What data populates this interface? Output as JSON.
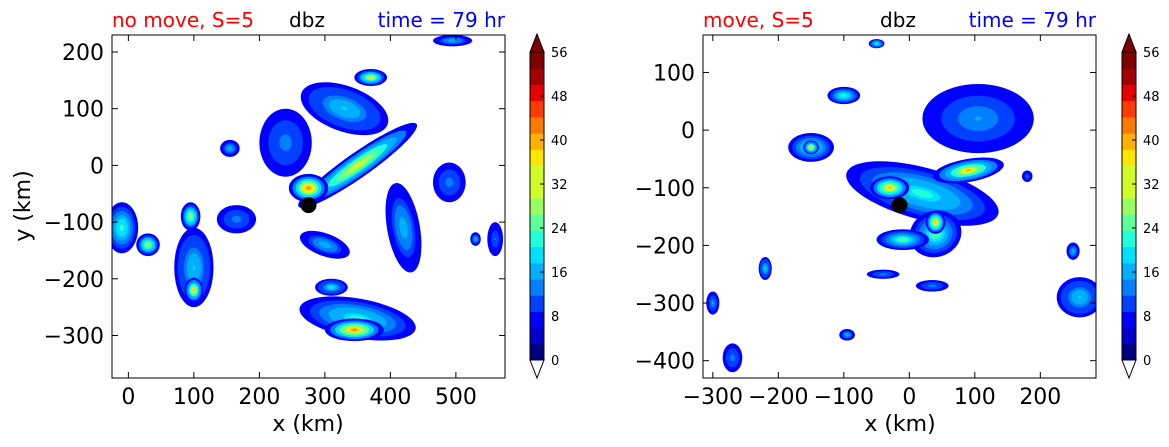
{
  "colors": {
    "title_left": "#ff0000",
    "title_center": "#000000",
    "title_right": "#0000ff",
    "marker": "#000000",
    "colormap": [
      "#00007f",
      "#0000c8",
      "#0000ff",
      "#0040ff",
      "#0080ff",
      "#00b0ff",
      "#00e0ff",
      "#20ffd8",
      "#60ff98",
      "#98ff60",
      "#d0ff28",
      "#ffe600",
      "#ffb000",
      "#ff7800",
      "#ff3c00",
      "#e80000",
      "#a40000",
      "#7f0000"
    ]
  },
  "chart_data": [
    {
      "type": "heatmap",
      "title_left": "no move, S=5",
      "title_center": "dbz",
      "title_right": "time = 79 hr",
      "xlabel": "x (km)",
      "ylabel": "y (km)",
      "xlim": [
        -25,
        575
      ],
      "ylim": [
        -375,
        230
      ],
      "xticks": [
        0,
        100,
        200,
        300,
        400,
        500
      ],
      "yticks": [
        200,
        100,
        0,
        -100,
        -200,
        -300
      ],
      "marker": {
        "x": 275,
        "y": -70
      },
      "colorbar": {
        "levels": [
          0,
          56
        ],
        "step": 3,
        "ticks": [
          0,
          8,
          16,
          24,
          32,
          40,
          48,
          56
        ],
        "extend": "both"
      },
      "echo_cells": [
        {
          "x": 350,
          "y": 0,
          "rx": 110,
          "ry": 22,
          "angle": 35,
          "dbz": 38
        },
        {
          "x": 275,
          "y": -40,
          "rx": 30,
          "ry": 25,
          "angle": 0,
          "dbz": 46
        },
        {
          "x": 330,
          "y": 100,
          "rx": 70,
          "ry": 40,
          "angle": -20,
          "dbz": 20
        },
        {
          "x": 370,
          "y": 155,
          "rx": 25,
          "ry": 15,
          "angle": 0,
          "dbz": 36
        },
        {
          "x": 420,
          "y": -110,
          "rx": 25,
          "ry": 80,
          "angle": 10,
          "dbz": 18
        },
        {
          "x": 350,
          "y": -270,
          "rx": 90,
          "ry": 35,
          "angle": -10,
          "dbz": 24
        },
        {
          "x": 345,
          "y": -290,
          "rx": 45,
          "ry": 20,
          "angle": 0,
          "dbz": 44
        },
        {
          "x": 300,
          "y": -140,
          "rx": 40,
          "ry": 20,
          "angle": -20,
          "dbz": 18
        },
        {
          "x": 310,
          "y": -215,
          "rx": 25,
          "ry": 15,
          "angle": 0,
          "dbz": 22
        },
        {
          "x": 100,
          "y": -180,
          "rx": 30,
          "ry": 70,
          "angle": 0,
          "dbz": 20
        },
        {
          "x": 100,
          "y": -220,
          "rx": 14,
          "ry": 22,
          "angle": 0,
          "dbz": 40
        },
        {
          "x": 95,
          "y": -90,
          "rx": 15,
          "ry": 25,
          "angle": 0,
          "dbz": 34
        },
        {
          "x": 30,
          "y": -140,
          "rx": 18,
          "ry": 20,
          "angle": 0,
          "dbz": 34
        },
        {
          "x": -10,
          "y": -110,
          "rx": 25,
          "ry": 45,
          "angle": 0,
          "dbz": 26
        },
        {
          "x": 165,
          "y": -95,
          "rx": 30,
          "ry": 25,
          "angle": 0,
          "dbz": 14
        },
        {
          "x": 155,
          "y": 30,
          "rx": 15,
          "ry": 15,
          "angle": 0,
          "dbz": 18
        },
        {
          "x": 490,
          "y": -30,
          "rx": 25,
          "ry": 35,
          "angle": 0,
          "dbz": 14
        },
        {
          "x": 240,
          "y": 40,
          "rx": 40,
          "ry": 60,
          "angle": 0,
          "dbz": 14
        },
        {
          "x": 495,
          "y": 220,
          "rx": 30,
          "ry": 10,
          "angle": 0,
          "dbz": 18
        },
        {
          "x": 560,
          "y": -130,
          "rx": 12,
          "ry": 30,
          "angle": 0,
          "dbz": 12
        },
        {
          "x": 530,
          "y": -130,
          "rx": 8,
          "ry": 12,
          "angle": 0,
          "dbz": 18
        }
      ]
    },
    {
      "type": "heatmap",
      "title_left": "move, S=5",
      "title_center": "dbz",
      "title_right": "time = 79 hr",
      "xlabel": "x (km)",
      "ylabel": "",
      "xlim": [
        -315,
        285
      ],
      "ylim": [
        -430,
        165
      ],
      "xticks": [
        -300,
        -200,
        -100,
        0,
        100,
        200
      ],
      "yticks": [
        100,
        0,
        -100,
        -200,
        -300,
        -400
      ],
      "marker": {
        "x": -15,
        "y": -130
      },
      "colorbar": {
        "levels": [
          0,
          56
        ],
        "step": 3,
        "ticks": [
          0,
          8,
          16,
          24,
          32,
          40,
          48,
          56
        ],
        "extend": "both"
      },
      "echo_cells": [
        {
          "x": 20,
          "y": -110,
          "rx": 120,
          "ry": 45,
          "angle": -15,
          "dbz": 24
        },
        {
          "x": 90,
          "y": -70,
          "rx": 55,
          "ry": 20,
          "angle": 10,
          "dbz": 40
        },
        {
          "x": -30,
          "y": -100,
          "rx": 30,
          "ry": 20,
          "angle": 0,
          "dbz": 42
        },
        {
          "x": 40,
          "y": -180,
          "rx": 40,
          "ry": 40,
          "angle": 20,
          "dbz": 28
        },
        {
          "x": 40,
          "y": -160,
          "rx": 15,
          "ry": 20,
          "angle": 0,
          "dbz": 42
        },
        {
          "x": -10,
          "y": -190,
          "rx": 40,
          "ry": 18,
          "angle": 0,
          "dbz": 30
        },
        {
          "x": 105,
          "y": 20,
          "rx": 85,
          "ry": 60,
          "angle": 0,
          "dbz": 16
        },
        {
          "x": -150,
          "y": -30,
          "rx": 35,
          "ry": 25,
          "angle": 0,
          "dbz": 24
        },
        {
          "x": -150,
          "y": -30,
          "rx": 12,
          "ry": 12,
          "angle": 0,
          "dbz": 40
        },
        {
          "x": -100,
          "y": 60,
          "rx": 25,
          "ry": 15,
          "angle": 0,
          "dbz": 26
        },
        {
          "x": -50,
          "y": 150,
          "rx": 12,
          "ry": 8,
          "angle": 0,
          "dbz": 24
        },
        {
          "x": -220,
          "y": -240,
          "rx": 10,
          "ry": 20,
          "angle": 0,
          "dbz": 20
        },
        {
          "x": -270,
          "y": -395,
          "rx": 15,
          "ry": 25,
          "angle": 0,
          "dbz": 14
        },
        {
          "x": -95,
          "y": -355,
          "rx": 12,
          "ry": 10,
          "angle": 0,
          "dbz": 18
        },
        {
          "x": -40,
          "y": -250,
          "rx": 25,
          "ry": 8,
          "angle": 0,
          "dbz": 14
        },
        {
          "x": 35,
          "y": -270,
          "rx": 25,
          "ry": 10,
          "angle": 0,
          "dbz": 14
        },
        {
          "x": 260,
          "y": -290,
          "rx": 35,
          "ry": 35,
          "angle": 0,
          "dbz": 20
        },
        {
          "x": 250,
          "y": -210,
          "rx": 10,
          "ry": 15,
          "angle": 0,
          "dbz": 18
        },
        {
          "x": -300,
          "y": -300,
          "rx": 10,
          "ry": 20,
          "angle": 0,
          "dbz": 16
        },
        {
          "x": 180,
          "y": -80,
          "rx": 8,
          "ry": 10,
          "angle": 0,
          "dbz": 12
        }
      ]
    }
  ]
}
